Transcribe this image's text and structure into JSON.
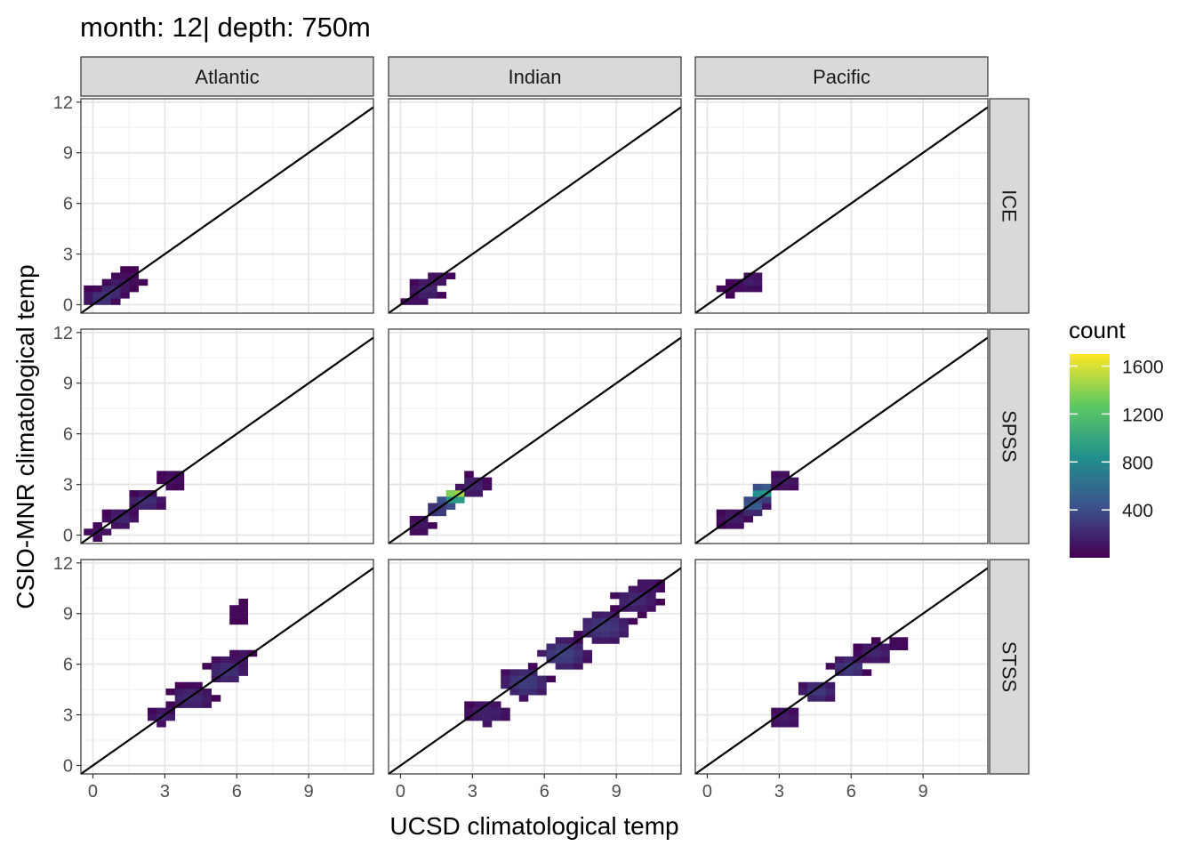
{
  "title": "month: 12| depth: 750m",
  "xlabel": "UCSD climatological temp",
  "ylabel": "CSIO-MNR climatological temp",
  "columns": [
    "Atlantic",
    "Indian",
    "Pacific"
  ],
  "rows": [
    "ICE",
    "SPSS",
    "STSS"
  ],
  "x_tick_labels": [
    "0",
    "3",
    "6",
    "9"
  ],
  "y_tick_labels": [
    "0",
    "3",
    "6",
    "9",
    "12"
  ],
  "legend": {
    "title": "count",
    "labels": [
      "1600",
      "1200",
      "800",
      "400"
    ],
    "ticks": [
      1600,
      1200,
      800,
      400
    ],
    "range": [
      1,
      1700
    ],
    "colormap": "viridis",
    "colors": [
      "#440154",
      "#3b528b",
      "#21918c",
      "#5ec962",
      "#fde725"
    ]
  },
  "chart_data": {
    "type": "heatmap",
    "subtype": "faceted 2D bin histogram with y = x reference line",
    "title": "month: 12| depth: 750m",
    "xlabel": "UCSD climatological temp",
    "ylabel": "CSIO-MNR climatological temp",
    "xlim": [
      -0.5,
      11.7
    ],
    "ylim": [
      -0.5,
      12.2
    ],
    "x_ticks": [
      0,
      3,
      6,
      9
    ],
    "y_ticks": [
      0,
      3,
      6,
      9,
      12
    ],
    "reference_line": "y = x",
    "grid": true,
    "legend_position": "right",
    "bin_width": 0.38,
    "facet_columns": [
      "Atlantic",
      "Indian",
      "Pacific"
    ],
    "facet_rows": [
      "ICE",
      "SPSS",
      "STSS"
    ],
    "panels": [
      {
        "column": "Atlantic",
        "row": "ICE",
        "clusters": [
          [
            0.1,
            0.4,
            0.4,
            0.4,
            150
          ],
          [
            0.4,
            0.4,
            0.4,
            0.4,
            300
          ],
          [
            0.8,
            0.8,
            0.4,
            0.4,
            250
          ],
          [
            1.1,
            1.2,
            0.4,
            0.4,
            150
          ],
          [
            1.5,
            1.5,
            0.4,
            0.4,
            80
          ]
        ]
      },
      {
        "column": "Indian",
        "row": "ICE",
        "clusters": [
          [
            0.6,
            0.3,
            0.4,
            0.3,
            80
          ],
          [
            1.1,
            0.9,
            0.5,
            0.5,
            200
          ],
          [
            1.6,
            1.5,
            0.4,
            0.4,
            120
          ]
        ]
      },
      {
        "column": "Pacific",
        "row": "ICE",
        "clusters": [
          [
            1.1,
            1.0,
            0.5,
            0.3,
            60
          ],
          [
            1.8,
            1.4,
            0.4,
            0.4,
            150
          ]
        ]
      },
      {
        "column": "Atlantic",
        "row": "SPSS",
        "clusters": [
          [
            0.3,
            0.2,
            0.4,
            0.3,
            120
          ],
          [
            1.2,
            1.0,
            0.5,
            0.4,
            200
          ],
          [
            2.2,
            2.0,
            0.6,
            0.4,
            250
          ],
          [
            3.3,
            3.3,
            0.4,
            0.4,
            80
          ]
        ]
      },
      {
        "column": "Indian",
        "row": "SPSS",
        "clusters": [
          [
            0.8,
            0.6,
            0.4,
            0.4,
            120
          ],
          [
            1.6,
            1.5,
            0.4,
            0.4,
            350
          ],
          [
            2.1,
            2.1,
            0.3,
            0.3,
            900
          ],
          [
            2.3,
            2.4,
            0.3,
            0.3,
            1650
          ],
          [
            3.0,
            2.9,
            0.5,
            0.5,
            200
          ]
        ]
      },
      {
        "column": "Pacific",
        "row": "SPSS",
        "clusters": [
          [
            1.1,
            1.0,
            0.5,
            0.4,
            150
          ],
          [
            1.9,
            1.8,
            0.4,
            0.4,
            550
          ],
          [
            2.3,
            2.5,
            0.3,
            0.3,
            1000
          ],
          [
            3.2,
            3.2,
            0.5,
            0.4,
            150
          ]
        ]
      },
      {
        "column": "Atlantic",
        "row": "STSS",
        "clusters": [
          [
            2.9,
            2.9,
            0.4,
            0.3,
            200
          ],
          [
            4.1,
            4.0,
            0.8,
            0.6,
            220
          ],
          [
            5.6,
            5.6,
            0.7,
            0.7,
            250
          ],
          [
            6.2,
            6.4,
            0.3,
            0.5,
            120
          ],
          [
            6.1,
            9.1,
            0.3,
            0.4,
            60
          ]
        ]
      },
      {
        "column": "Indian",
        "row": "STSS",
        "clusters": [
          [
            3.6,
            3.1,
            0.8,
            0.6,
            180
          ],
          [
            5.2,
            4.9,
            0.9,
            0.8,
            320
          ],
          [
            6.8,
            6.6,
            0.9,
            0.8,
            350
          ],
          [
            8.5,
            8.2,
            1.0,
            0.8,
            300
          ],
          [
            9.8,
            9.8,
            0.8,
            0.7,
            220
          ],
          [
            10.3,
            10.6,
            0.5,
            0.4,
            120
          ]
        ]
      },
      {
        "column": "Pacific",
        "row": "STSS",
        "clusters": [
          [
            3.2,
            2.8,
            0.5,
            0.5,
            150
          ],
          [
            4.6,
            4.4,
            0.6,
            0.5,
            300
          ],
          [
            5.9,
            5.8,
            0.6,
            0.5,
            320
          ],
          [
            7.0,
            6.7,
            0.6,
            0.5,
            200
          ],
          [
            7.9,
            7.2,
            0.3,
            0.3,
            60
          ]
        ]
      }
    ]
  }
}
